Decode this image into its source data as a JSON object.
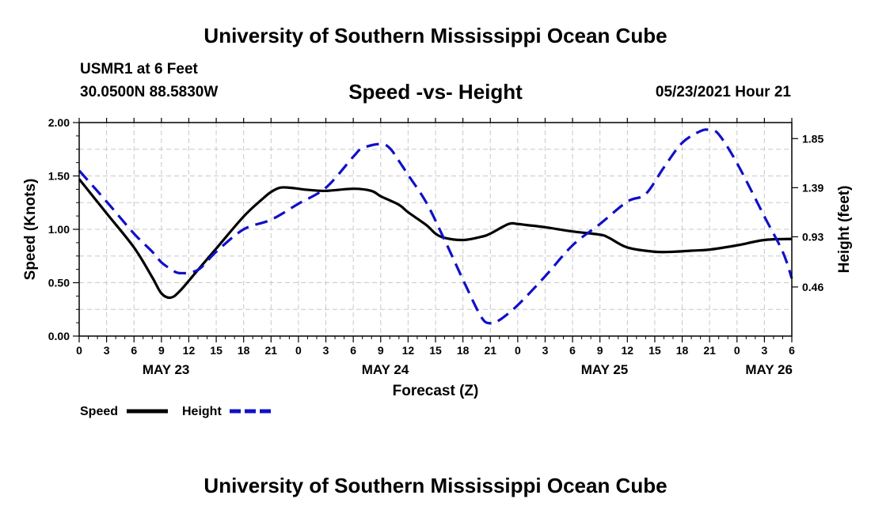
{
  "page": {
    "title_top": "University of Southern Mississippi Ocean Cube",
    "title_bottom": "University of Southern Mississippi Ocean Cube",
    "station": "USMR1 at 6 Feet",
    "coords": "30.0500N  88.5830W",
    "subtitle": "Speed -vs- Height",
    "datetime": "05/23/2021 Hour 21"
  },
  "chart_data": {
    "type": "line",
    "title": "Speed -vs- Height",
    "xlabel": "Forecast (Z)",
    "ylabel": "Speed (Knots)",
    "y2label": "Height (feet)",
    "xlim": [
      0,
      78
    ],
    "ylim": [
      0,
      2.0
    ],
    "y2lim": [
      0,
      2.0
    ],
    "x_ticks": [
      0,
      3,
      6,
      9,
      12,
      15,
      18,
      21,
      24,
      27,
      30,
      33,
      36,
      39,
      42,
      45,
      48,
      51,
      54,
      57,
      60,
      63,
      66,
      69,
      72,
      75,
      78
    ],
    "x_tick_labels": [
      "0",
      "3",
      "6",
      "9",
      "12",
      "15",
      "18",
      "21",
      "0",
      "3",
      "6",
      "9",
      "12",
      "15",
      "18",
      "21",
      "0",
      "3",
      "6",
      "9",
      "12",
      "15",
      "18",
      "21",
      "0",
      "3",
      "6"
    ],
    "date_labels": [
      {
        "x": 9.5,
        "label": "MAY 23"
      },
      {
        "x": 33.5,
        "label": "MAY 24"
      },
      {
        "x": 57.5,
        "label": "MAY 25"
      },
      {
        "x": 75.5,
        "label": "MAY 26"
      }
    ],
    "y_ticks": [
      0,
      0.5,
      1.0,
      1.5,
      2.0
    ],
    "y_tick_labels": [
      "0.00",
      "0.50",
      "1.00",
      "1.50",
      "2.00"
    ],
    "y2_ticks": [
      0.46,
      0.93,
      1.39,
      1.85
    ],
    "y2_tick_labels": [
      "0.46",
      "0.93",
      "1.39",
      "1.85"
    ],
    "grid": true,
    "series": [
      {
        "name": "Speed",
        "color": "#000000",
        "dash": "solid",
        "axis": "left",
        "x": [
          0,
          3,
          6,
          8,
          9,
          10,
          11,
          13,
          15,
          18,
          20,
          21,
          22,
          23,
          24,
          25,
          27,
          30,
          32,
          33,
          35,
          36,
          38,
          39,
          40,
          42,
          44,
          45,
          47,
          48,
          49,
          51,
          54,
          57,
          58,
          60,
          63,
          65,
          67,
          69,
          72,
          75,
          78
        ],
        "y": [
          1.47,
          1.15,
          0.83,
          0.55,
          0.4,
          0.36,
          0.42,
          0.62,
          0.82,
          1.12,
          1.28,
          1.35,
          1.39,
          1.39,
          1.38,
          1.37,
          1.36,
          1.38,
          1.36,
          1.31,
          1.23,
          1.16,
          1.04,
          0.96,
          0.92,
          0.9,
          0.93,
          0.96,
          1.05,
          1.05,
          1.04,
          1.02,
          0.98,
          0.95,
          0.92,
          0.83,
          0.79,
          0.79,
          0.8,
          0.81,
          0.85,
          0.9,
          0.91
        ]
      },
      {
        "name": "Height",
        "color": "#1010c8",
        "dash": "dashed",
        "axis": "right",
        "x": [
          0,
          3,
          6,
          8,
          9,
          10,
          11,
          13,
          15,
          18,
          21,
          24,
          27,
          30,
          31,
          33,
          34,
          35,
          36,
          38,
          40,
          42,
          44,
          45,
          46,
          48,
          51,
          54,
          57,
          60,
          62,
          64,
          66,
          68,
          69,
          70,
          72,
          75,
          77,
          78
        ],
        "y": [
          1.55,
          1.26,
          0.96,
          0.79,
          0.69,
          0.63,
          0.59,
          0.62,
          0.79,
          1.0,
          1.09,
          1.24,
          1.39,
          1.68,
          1.76,
          1.8,
          1.76,
          1.64,
          1.51,
          1.25,
          0.9,
          0.53,
          0.18,
          0.12,
          0.15,
          0.29,
          0.56,
          0.85,
          1.05,
          1.26,
          1.33,
          1.58,
          1.81,
          1.92,
          1.93,
          1.89,
          1.62,
          1.12,
          0.79,
          0.54
        ]
      }
    ],
    "legend": [
      {
        "label": "Speed"
      },
      {
        "label": "Height"
      }
    ],
    "legend_position": "bottom-left"
  }
}
